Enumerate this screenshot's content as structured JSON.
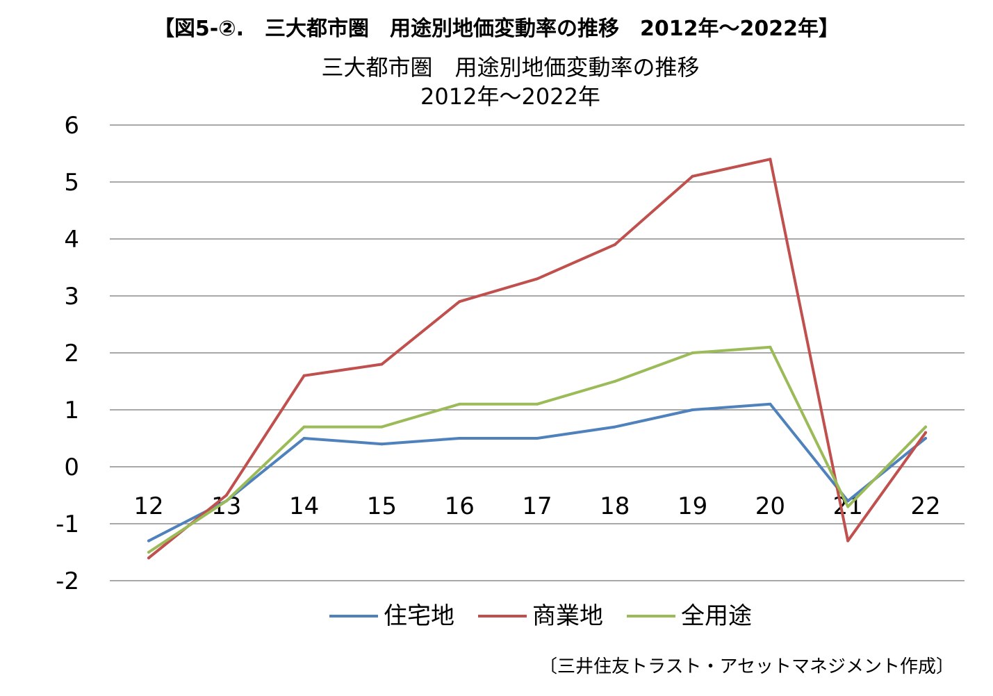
{
  "figure_caption": "【図5-②.　三大都市圏　用途別地価変動率の推移　2012年～2022年】",
  "chart_data": {
    "type": "line",
    "title_lines": [
      "三大都市圏　用途別地価変動率の推移",
      "2012年～2022年"
    ],
    "categories": [
      "12",
      "13",
      "14",
      "15",
      "16",
      "17",
      "18",
      "19",
      "20",
      "21",
      "22"
    ],
    "series": [
      {
        "name": "住宅地",
        "color": "#4f81bd",
        "values": [
          -1.3,
          -0.6,
          0.5,
          0.4,
          0.5,
          0.5,
          0.7,
          1.0,
          1.1,
          -0.6,
          0.5
        ]
      },
      {
        "name": "商業地",
        "color": "#c0504d",
        "values": [
          -1.6,
          -0.5,
          1.6,
          1.8,
          2.9,
          3.3,
          3.9,
          5.1,
          5.4,
          -1.3,
          0.6
        ]
      },
      {
        "name": "全用途",
        "color": "#9bbb59",
        "values": [
          -1.5,
          -0.6,
          0.7,
          0.7,
          1.1,
          1.1,
          1.5,
          2.0,
          2.1,
          -0.7,
          0.7
        ]
      }
    ],
    "ylim": [
      -2,
      6
    ],
    "yticks": [
      "6",
      "5",
      "4",
      "3",
      "2",
      "1",
      "0",
      "-1",
      "-2"
    ],
    "grid": true,
    "legend_position": "bottom"
  },
  "credit": "〔三井住友トラスト・アセットマネジメント作成〕"
}
